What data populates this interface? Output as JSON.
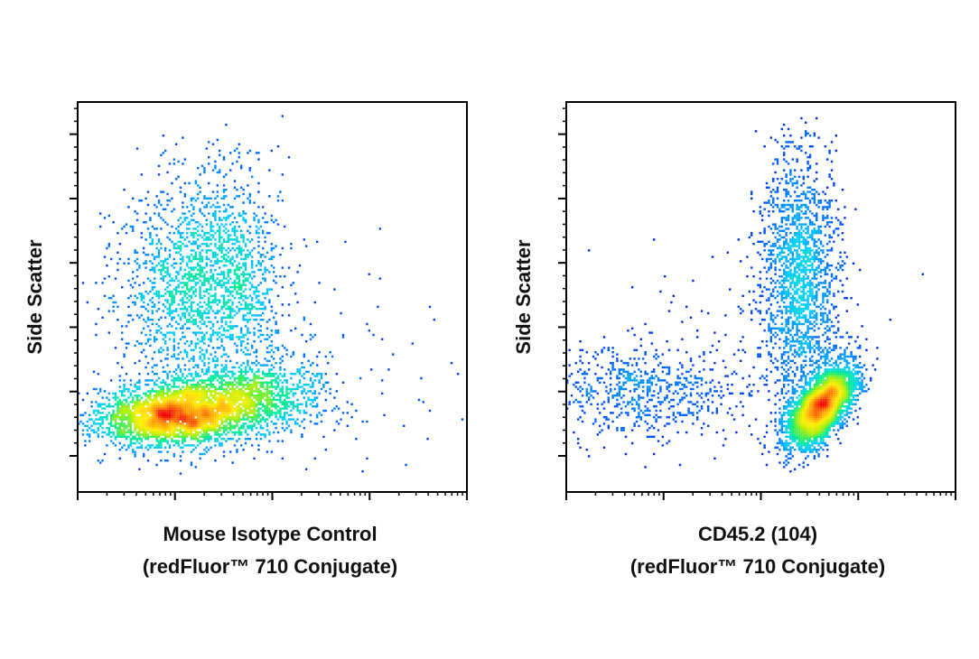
{
  "chart_data": [
    {
      "type": "scatter",
      "subtype": "flow-cytometry-density-dot-plot",
      "xlabel": "Mouse Isotype Control\n(redFluor™ 710 Conjugate)",
      "xlabel_lines": [
        "Mouse Isotype Control",
        "(redFluor™ 710 Conjugate)"
      ],
      "ylabel": "Side Scatter",
      "x_scale": "log",
      "y_scale": "linear",
      "x_tick_labels": [],
      "y_tick_labels": [],
      "x_range_decades": 4,
      "y_major_ticks": 6,
      "grid": false,
      "legend": "none",
      "color_scale": [
        "#0000dd",
        "#0066ff",
        "#00ccff",
        "#00ee88",
        "#aaee00",
        "#ffee00",
        "#ff9900",
        "#ee0000"
      ],
      "populations": [
        {
          "name": "main",
          "x_log": 1.05,
          "y_frac": 0.2,
          "sx": 0.42,
          "sy": 0.04,
          "n": 3400,
          "rho": 0.15
        },
        {
          "name": "upper-band",
          "x_log": 1.15,
          "y_frac": 0.53,
          "sx": 0.35,
          "sy": 0.14,
          "n": 1500,
          "rho": 0.1
        },
        {
          "name": "upper-band-right",
          "x_log": 1.7,
          "y_frac": 0.55,
          "sx": 0.22,
          "sy": 0.13,
          "n": 600,
          "rho": 0
        },
        {
          "name": "right-tail",
          "x_log": 1.85,
          "y_frac": 0.25,
          "sx": 0.35,
          "sy": 0.05,
          "n": 900,
          "rho": 0
        },
        {
          "name": "sparse",
          "x_log": 2.2,
          "y_frac": 0.3,
          "sx": 0.8,
          "sy": 0.15,
          "n": 150,
          "rho": 0
        }
      ]
    },
    {
      "type": "scatter",
      "subtype": "flow-cytometry-density-dot-plot",
      "xlabel": "CD45.2 (104)\n(redFluor™ 710 Conjugate)",
      "xlabel_lines": [
        "CD45.2 (104)",
        "(redFluor™ 710 Conjugate)"
      ],
      "ylabel": "Side Scatter",
      "x_scale": "log",
      "y_scale": "linear",
      "x_tick_labels": [],
      "y_tick_labels": [],
      "x_range_decades": 4,
      "y_major_ticks": 6,
      "grid": false,
      "legend": "none",
      "color_scale": [
        "#0000dd",
        "#0066ff",
        "#00ccff",
        "#00ee88",
        "#aaee00",
        "#ffee00",
        "#ff9900",
        "#ee0000"
      ],
      "populations": [
        {
          "name": "CD45-positive-main",
          "x_log": 2.62,
          "y_frac": 0.22,
          "sx": 0.17,
          "sy": 0.05,
          "n": 3600,
          "rho": 0.6
        },
        {
          "name": "CD45-positive-upper",
          "x_log": 2.4,
          "y_frac": 0.55,
          "sx": 0.2,
          "sy": 0.17,
          "n": 1900,
          "rho": 0
        },
        {
          "name": "CD45-negative",
          "x_log": 0.75,
          "y_frac": 0.26,
          "sx": 0.5,
          "sy": 0.06,
          "n": 700,
          "rho": 0
        },
        {
          "name": "sparse",
          "x_log": 1.5,
          "y_frac": 0.35,
          "sx": 0.9,
          "sy": 0.15,
          "n": 120,
          "rho": 0
        }
      ]
    }
  ]
}
